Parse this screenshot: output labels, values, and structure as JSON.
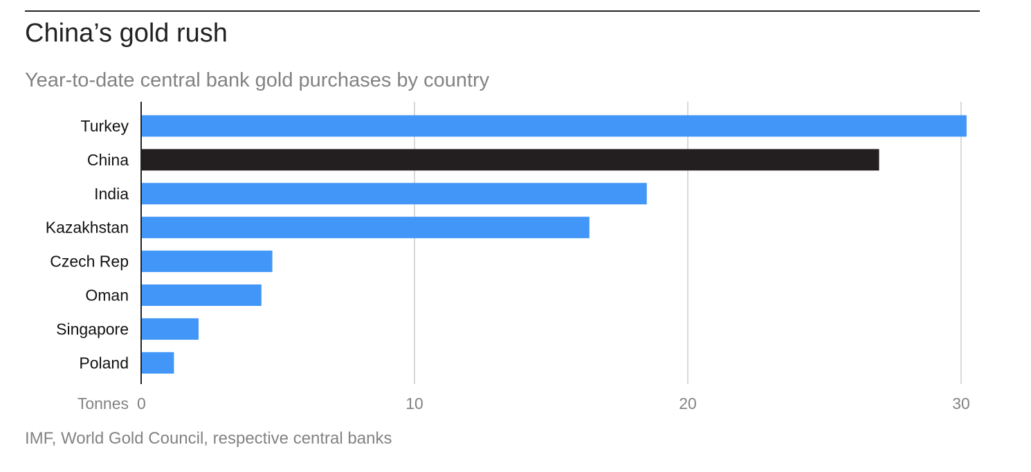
{
  "chart_data": {
    "type": "bar",
    "orientation": "horizontal",
    "title": "China’s gold rush",
    "subtitle": "Year-to-date central bank gold purchases by country",
    "source": "IMF, World Gold Council, respective central banks",
    "xlabel": "Tonnes",
    "ylabel": "",
    "xlim": [
      0,
      30
    ],
    "xticks": [
      "0",
      "10",
      "20",
      "30"
    ],
    "grid": true,
    "categories": [
      "Turkey",
      "China",
      "India",
      "Kazakhstan",
      "Czech Rep",
      "Oman",
      "Singapore",
      "Poland"
    ],
    "values": [
      30.2,
      27.0,
      18.5,
      16.4,
      4.8,
      4.4,
      2.1,
      1.2
    ],
    "colors": [
      "#4196f7",
      "#231f20",
      "#4196f7",
      "#4196f7",
      "#4196f7",
      "#4196f7",
      "#4196f7",
      "#4196f7"
    ]
  },
  "colors": {
    "bar": "#4196f7",
    "highlight": "#231f20",
    "grid": "#d9d9d9",
    "axis": "#222222",
    "muted_text": "#828282"
  }
}
